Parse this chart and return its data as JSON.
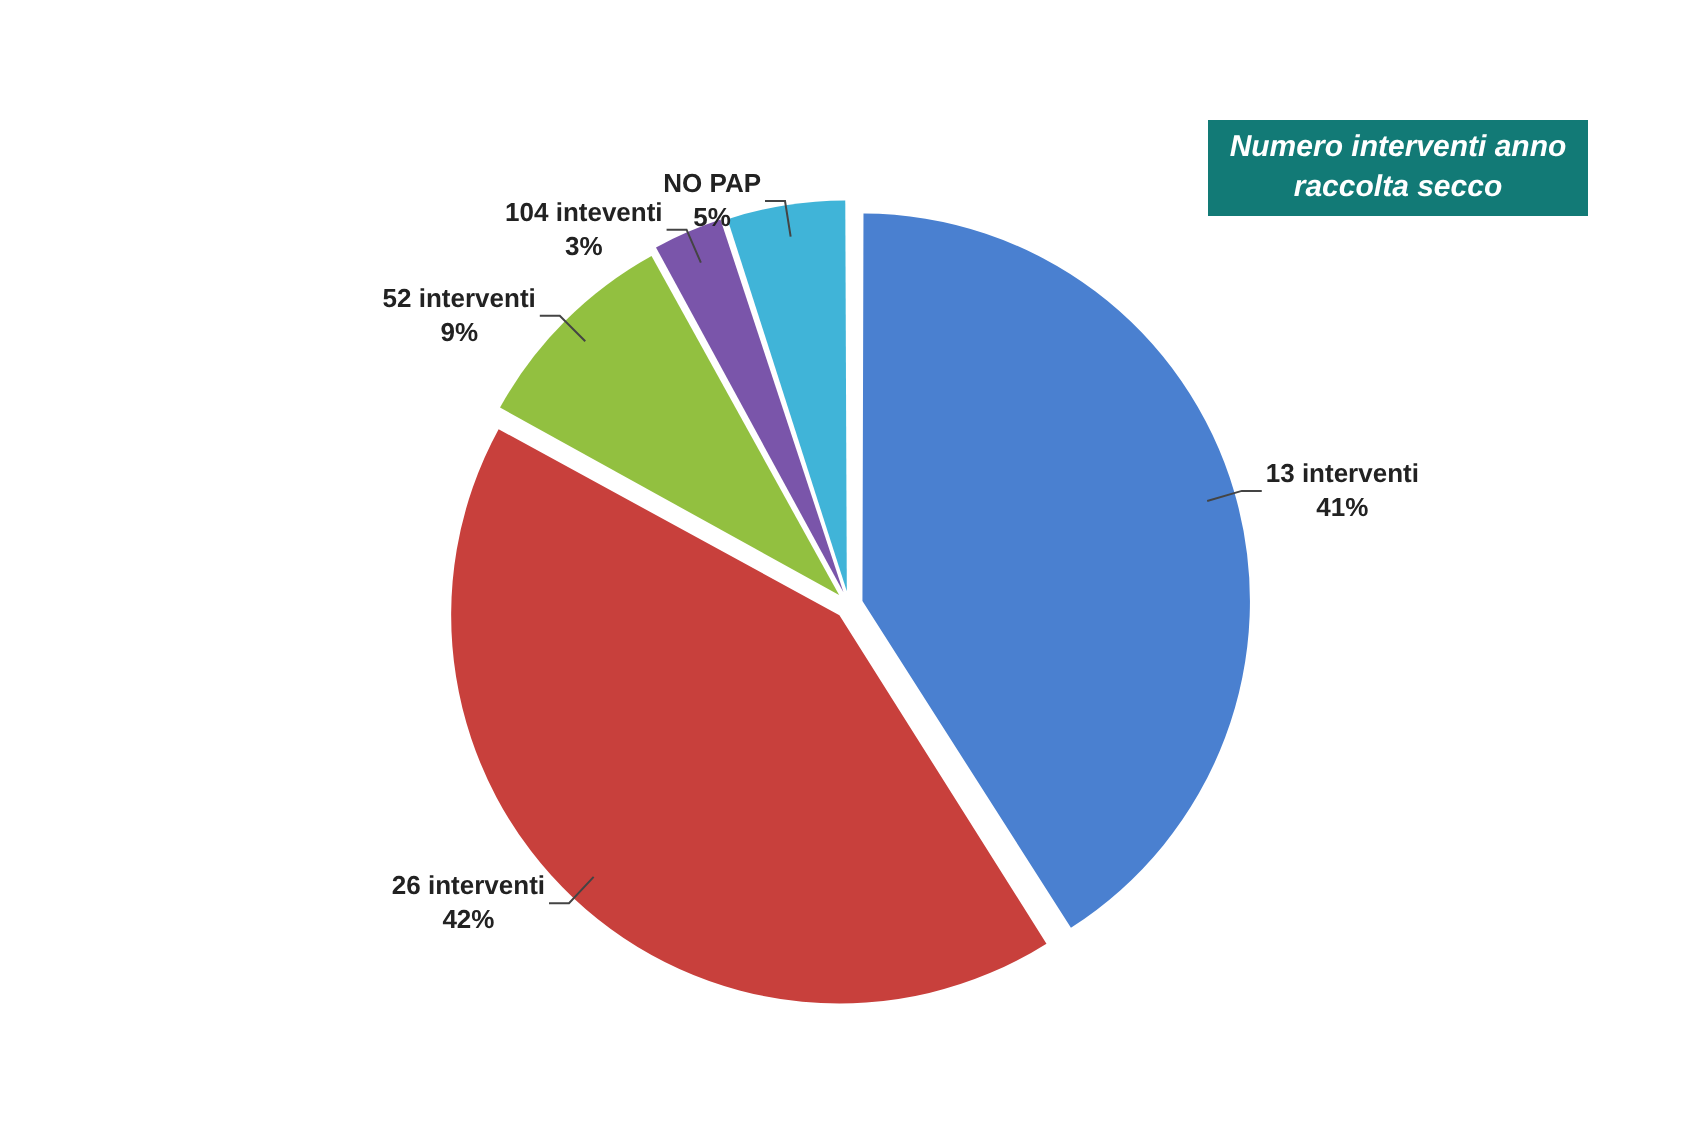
{
  "chart_data": {
    "type": "pie",
    "title": "Numero interventi anno raccolta secco",
    "categories": [
      "13 interventi",
      "26 interventi",
      "52 interventi",
      "104 inteventi",
      "NO PAP"
    ],
    "values": [
      41,
      42,
      9,
      3,
      5
    ],
    "colors": [
      "#4a80d0",
      "#c8403c",
      "#92c040",
      "#7a55aa",
      "#40b4d8"
    ],
    "value_labels": [
      "41%",
      "42%",
      "9%",
      "3%",
      "5%"
    ],
    "legend": false
  }
}
